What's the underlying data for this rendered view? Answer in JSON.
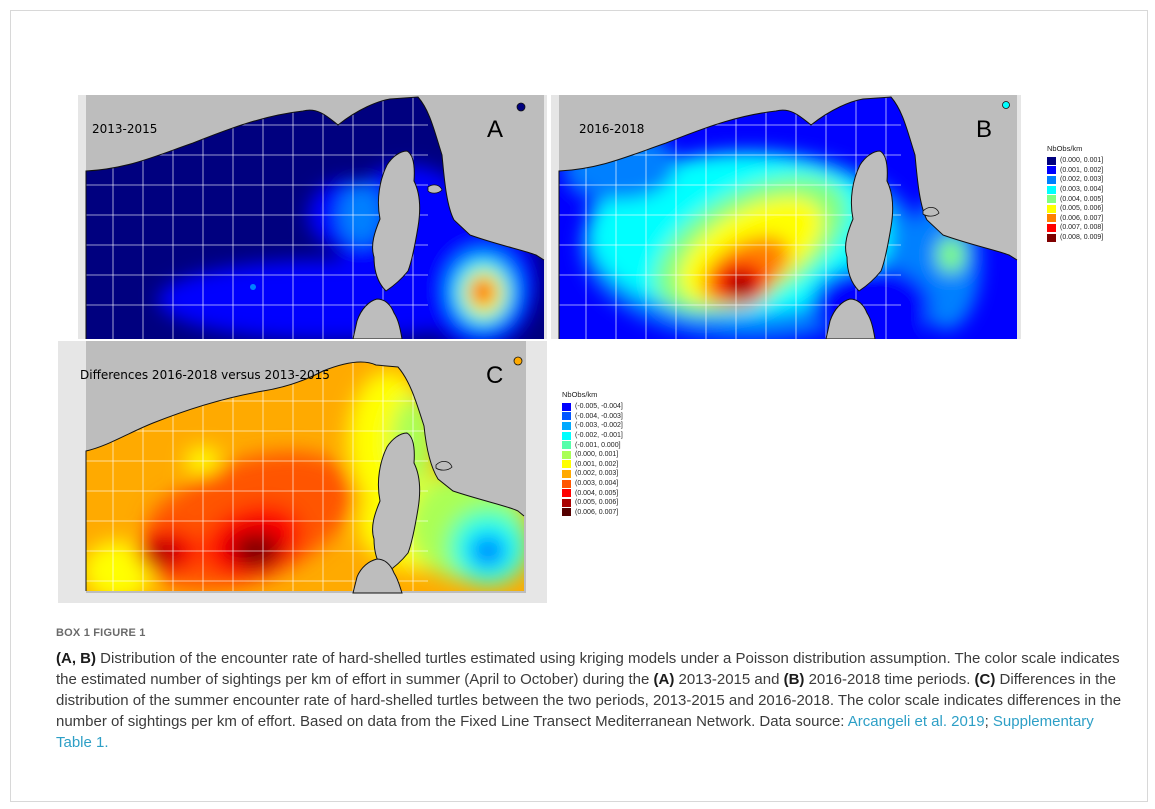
{
  "panels": {
    "a": {
      "period": "2013-2015",
      "letter": "A"
    },
    "b": {
      "period": "2016-2018",
      "letter": "B"
    },
    "c": {
      "period": "Differences 2016-2018 versus 2013-2015",
      "letter": "C"
    }
  },
  "legend_rate": {
    "title": "NbObs/km",
    "items": [
      {
        "label": "(0.000, 0.001]",
        "color": "#00007f"
      },
      {
        "label": "(0.001, 0.002]",
        "color": "#0000ff"
      },
      {
        "label": "(0.002, 0.003]",
        "color": "#0080ff"
      },
      {
        "label": "(0.003, 0.004]",
        "color": "#00ffff"
      },
      {
        "label": "(0.004, 0.005]",
        "color": "#80ff80"
      },
      {
        "label": "(0.005, 0.006]",
        "color": "#ffff00"
      },
      {
        "label": "(0.006, 0.007]",
        "color": "#ff8000"
      },
      {
        "label": "(0.007, 0.008]",
        "color": "#ff0000"
      },
      {
        "label": "(0.008, 0.009]",
        "color": "#7f0000"
      }
    ]
  },
  "legend_diff": {
    "title": "NbObs/km",
    "items": [
      {
        "label": "(-0.005, -0.004]",
        "color": "#0000ff"
      },
      {
        "label": "(-0.004, -0.003]",
        "color": "#0055ff"
      },
      {
        "label": "(-0.003, -0.002]",
        "color": "#00aaff"
      },
      {
        "label": "(-0.002, -0.001]",
        "color": "#00ffff"
      },
      {
        "label": "(-0.001, 0.000]",
        "color": "#55ffaa"
      },
      {
        "label": "(0.000, 0.001]",
        "color": "#aaff55"
      },
      {
        "label": "(0.001, 0.002]",
        "color": "#ffff00"
      },
      {
        "label": "(0.002, 0.003]",
        "color": "#ffaa00"
      },
      {
        "label": "(0.003, 0.004]",
        "color": "#ff5500"
      },
      {
        "label": "(0.004, 0.005]",
        "color": "#ff0000"
      },
      {
        "label": "(0.005, 0.006]",
        "color": "#aa0000"
      },
      {
        "label": "(0.006, 0.007]",
        "color": "#550000"
      }
    ]
  },
  "caption": {
    "label": "BOX 1 FIGURE 1",
    "p1": "(A, B)",
    "t1": " Distribution of the encounter rate of hard-shelled turtles estimated using kriging models under a Poisson distribution assumption. The color scale indicates the estimated number of sightings per km of effort in summer (April to October) during the ",
    "p2": "(A)",
    "t2": " 2013-2015 and ",
    "p3": "(B)",
    "t3": " 2016-2018 time periods. ",
    "p4": "(C)",
    "t4": " Differences in the distribution of the summer encounter rate of hard-shelled turtles between the two periods, 2013-2015 and 2016-2018. The color scale indicates differences in the number of sightings per km of effort. Based on data from the Fixed Line Transect Mediterranean Network. Data source: ",
    "ref1": "Arcangeli et al. 2019",
    "sep": "; ",
    "ref2": "Supplementary Table 1",
    "end": "."
  }
}
